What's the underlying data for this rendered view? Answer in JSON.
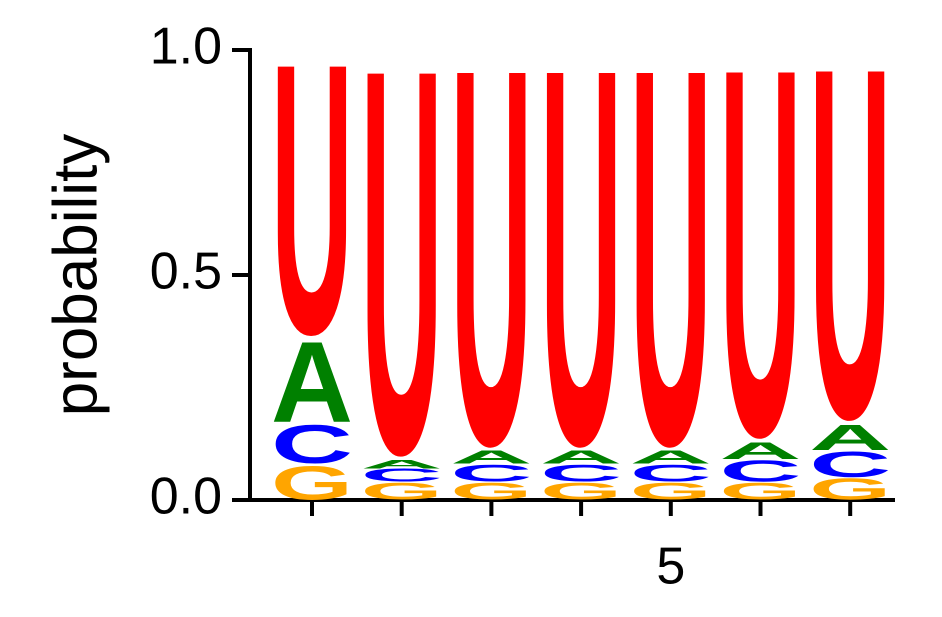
{
  "chart_data": {
    "type": "logo",
    "y_label": "probability",
    "categories": [
      null,
      null,
      null,
      null,
      "5",
      null,
      null
    ],
    "series": [
      {
        "name": "G",
        "color": "#ffa500",
        "values": [
          0.08,
          0.04,
          0.04,
          0.04,
          0.04,
          0.04,
          0.05
        ]
      },
      {
        "name": "C",
        "color": "#0000ff",
        "values": [
          0.09,
          0.03,
          0.04,
          0.04,
          0.04,
          0.05,
          0.06
        ]
      },
      {
        "name": "A",
        "color": "#008000",
        "values": [
          0.19,
          0.02,
          0.03,
          0.03,
          0.03,
          0.04,
          0.06
        ]
      },
      {
        "name": "U",
        "color": "#ff0000",
        "values": [
          0.64,
          0.91,
          0.89,
          0.89,
          0.89,
          0.87,
          0.83
        ]
      }
    ],
    "ylim": [
      0,
      1
    ],
    "yticks": [
      {
        "value": 0,
        "label": "0.0"
      },
      0.5,
      {
        "value": 1,
        "label": "1.0"
      }
    ]
  }
}
